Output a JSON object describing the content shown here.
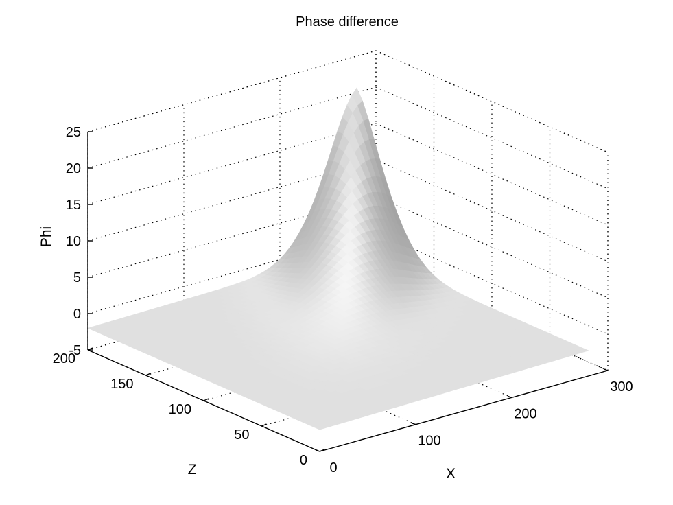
{
  "chart_data": {
    "type": "surface",
    "title": "Phase difference",
    "xlabel": "X",
    "ylabel": "Z",
    "zlabel": "Phi",
    "xlim": [
      0,
      300
    ],
    "ylim": [
      0,
      200
    ],
    "zlim": [
      -5,
      25
    ],
    "xticks": [
      0,
      100,
      200,
      300
    ],
    "yticks": [
      0,
      50,
      100,
      150,
      200
    ],
    "zticks": [
      -5,
      0,
      5,
      10,
      15,
      20,
      25
    ],
    "grid": true,
    "surface": {
      "x_range": [
        0,
        280
      ],
      "z_range": [
        0,
        200
      ],
      "baseline_phi": -2,
      "peak": {
        "x": 280,
        "z": 200,
        "phi": 22
      },
      "colormap": "gray"
    }
  }
}
